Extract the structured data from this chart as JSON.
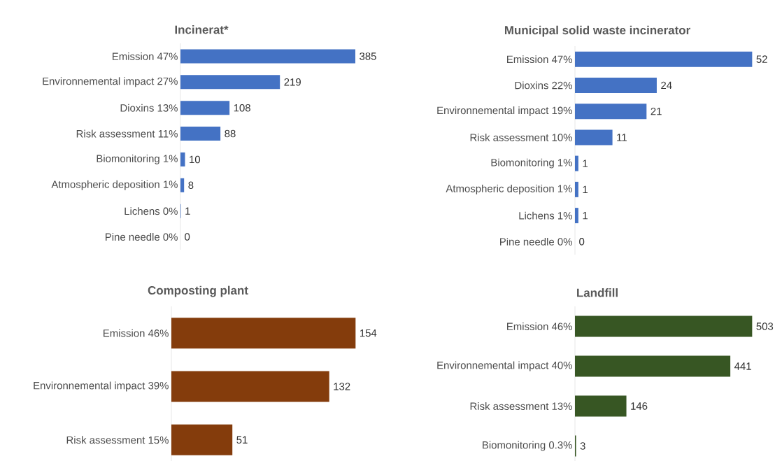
{
  "chart_data": [
    {
      "type": "bar",
      "orientation": "horizontal",
      "title": "Incinerat*",
      "categories": [
        "Emission 47%",
        "Environnemental impact 27%",
        "Dioxins 13%",
        "Risk assessment 11%",
        "Biomonitoring 1%",
        "Atmospheric deposition 1%",
        "Lichens 0%",
        "Pine needle 0%"
      ],
      "values": [
        385,
        219,
        108,
        88,
        10,
        8,
        1,
        0
      ],
      "color": "#4472c4",
      "data_labels": true
    },
    {
      "type": "bar",
      "orientation": "horizontal",
      "title": "Municipal solid waste incinerator",
      "categories": [
        "Emission 47%",
        "Dioxins 22%",
        "Environnemental impact 19%",
        "Risk assessment 10%",
        "Biomonitoring 1%",
        "Atmospheric deposition 1%",
        "Lichens 1%",
        "Pine needle 0%"
      ],
      "values": [
        52,
        24,
        21,
        11,
        1,
        1,
        1,
        0
      ],
      "color": "#4472c4",
      "data_labels": true
    },
    {
      "type": "bar",
      "orientation": "horizontal",
      "title": "Composting plant",
      "categories": [
        "Emission 46%",
        "Environnemental impact 39%",
        "Risk assessment 15%"
      ],
      "values": [
        154,
        132,
        51
      ],
      "color": "#843c0c",
      "data_labels": true
    },
    {
      "type": "bar",
      "orientation": "horizontal",
      "title": "Landfill",
      "categories": [
        "Emission 46%",
        "Environnemental impact 40%",
        "Risk assessment 13%",
        "Biomonitoring 0.3%"
      ],
      "values": [
        503,
        441,
        146,
        3
      ],
      "color": "#375623",
      "data_labels": true
    }
  ]
}
